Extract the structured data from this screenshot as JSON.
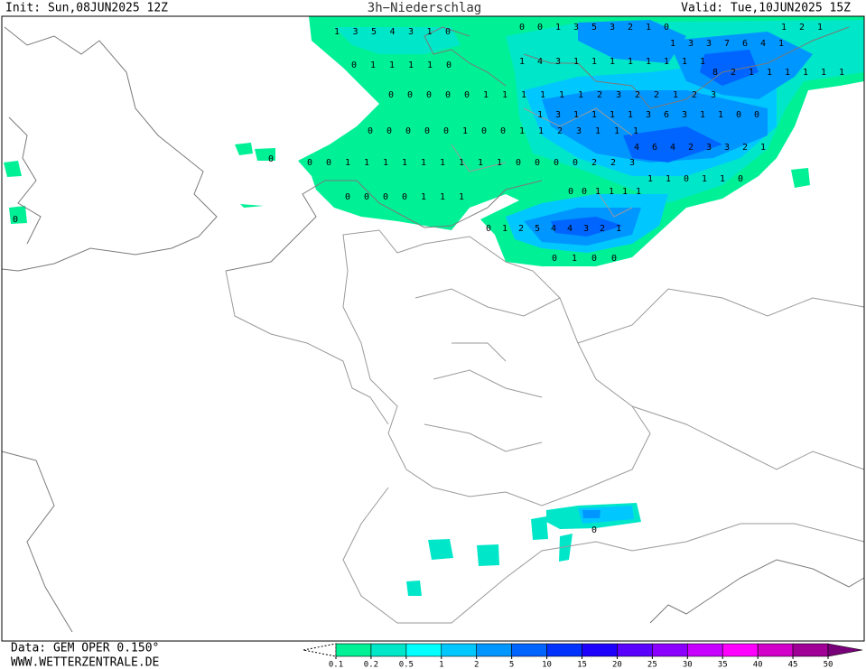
{
  "header": {
    "init": "Init: Sun,08JUN2025 12Z",
    "title": "3h−Niederschlag",
    "valid": "Valid: Tue,10JUN2025 15Z"
  },
  "footer": {
    "data": "Data: GEM OPER 0.150°",
    "website": "WWW.WETTERZENTRALE.DE"
  },
  "colorbar": {
    "ticks": [
      0.1,
      0.2,
      0.5,
      1,
      2,
      5,
      10,
      15,
      20,
      25,
      30,
      35,
      40,
      45,
      50
    ],
    "colors": [
      "#00f096",
      "#00e6c8",
      "#00ffff",
      "#00c8ff",
      "#0096ff",
      "#0064ff",
      "#0032ff",
      "#1e00ff",
      "#5a00ff",
      "#8c00ff",
      "#c800ff",
      "#ff00ff",
      "#d200c8",
      "#a00096",
      "#780078"
    ]
  },
  "map_labels": [
    [
      1,
      3,
      5,
      4,
      3,
      1,
      0
    ],
    [
      0,
      0,
      1,
      3,
      5,
      3,
      2,
      1,
      0
    ],
    [
      1,
      2,
      1
    ],
    [
      1,
      3,
      3,
      7,
      6,
      4,
      1
    ],
    [
      0,
      1,
      1,
      1,
      1,
      0
    ],
    [
      1,
      4,
      3,
      1,
      1,
      1,
      1,
      1,
      1,
      1,
      1
    ],
    [
      8,
      2,
      1,
      1,
      1,
      1,
      1,
      1
    ],
    [
      0,
      0,
      0,
      0,
      0,
      1,
      1,
      1,
      1,
      1,
      1,
      2,
      3,
      2,
      2,
      1,
      2,
      3
    ],
    [
      1,
      3,
      1,
      1,
      1,
      1,
      3,
      6,
      3,
      1,
      1,
      0,
      0
    ],
    [
      0,
      0,
      0,
      0,
      0,
      1,
      0,
      0,
      1,
      1,
      2,
      3,
      1,
      1,
      1
    ],
    [
      4,
      6,
      4,
      2,
      3,
      3,
      2,
      1
    ],
    [
      0,
      0,
      1,
      1,
      1,
      1,
      1,
      1,
      1,
      1,
      1,
      0,
      0,
      0,
      0,
      2,
      2,
      3
    ],
    [
      1,
      1,
      0,
      1,
      1,
      0
    ],
    [
      0,
      0,
      0,
      0,
      1,
      1,
      1
    ],
    [
      0,
      0,
      1,
      1,
      1,
      1
    ],
    [
      0,
      1,
      2,
      5,
      4,
      4,
      3,
      2,
      1
    ],
    [
      0,
      1,
      0,
      0
    ],
    [
      0
    ],
    [
      0
    ],
    [
      0
    ]
  ]
}
